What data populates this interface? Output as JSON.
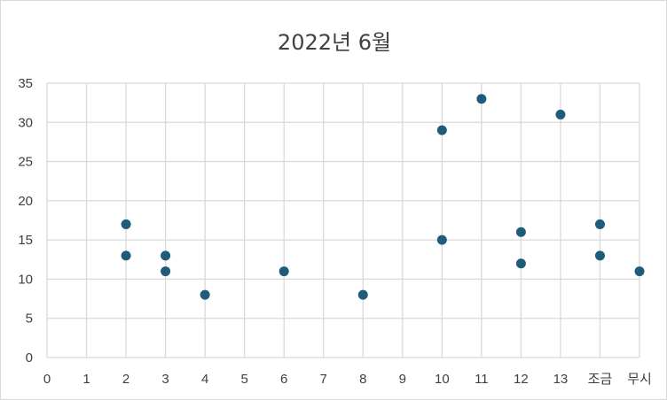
{
  "chart_data": {
    "type": "scatter",
    "title": "2022년 6월",
    "xlabel": "",
    "ylabel": "",
    "x_tick_labels": [
      "0",
      "1",
      "2",
      "3",
      "4",
      "5",
      "6",
      "7",
      "8",
      "9",
      "10",
      "11",
      "12",
      "13",
      "조금",
      "무시"
    ],
    "y_tick_labels": [
      "0",
      "5",
      "10",
      "15",
      "20",
      "25",
      "30",
      "35"
    ],
    "ylim": [
      0,
      35
    ],
    "grid": true,
    "marker_color": "#1f5c7a",
    "points": [
      {
        "x": "2",
        "y": 17
      },
      {
        "x": "2",
        "y": 13
      },
      {
        "x": "3",
        "y": 13
      },
      {
        "x": "3",
        "y": 11
      },
      {
        "x": "4",
        "y": 8
      },
      {
        "x": "6",
        "y": 11
      },
      {
        "x": "8",
        "y": 8
      },
      {
        "x": "10",
        "y": 29
      },
      {
        "x": "10",
        "y": 15
      },
      {
        "x": "11",
        "y": 33
      },
      {
        "x": "12",
        "y": 16
      },
      {
        "x": "12",
        "y": 12
      },
      {
        "x": "13",
        "y": 31
      },
      {
        "x": "조금",
        "y": 17
      },
      {
        "x": "조금",
        "y": 13
      },
      {
        "x": "무시",
        "y": 11
      }
    ]
  }
}
